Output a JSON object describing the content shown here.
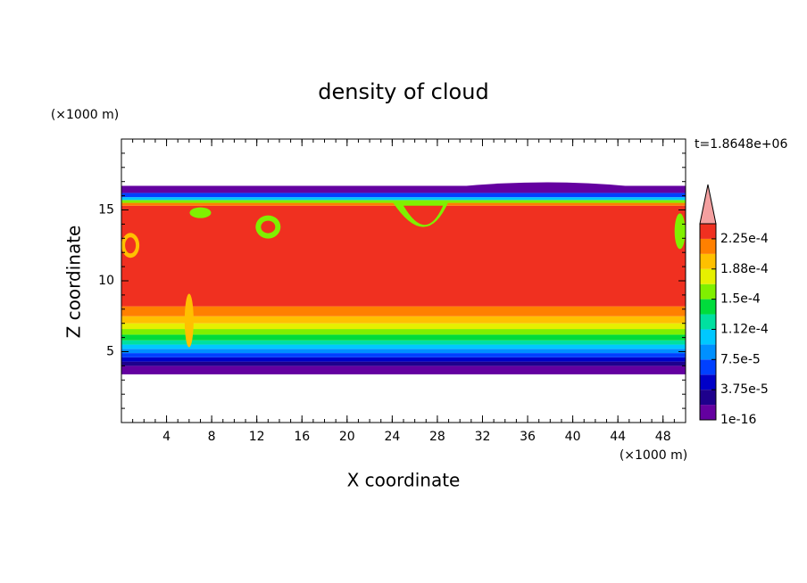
{
  "chart_data": {
    "type": "contour",
    "title": "density of cloud",
    "x_label": "X coordinate",
    "y_label": "Z coordinate",
    "x_unit": "(×1000 m)",
    "y_unit": "(×1000 m)",
    "time_label": "t=1.8648e+06",
    "xlim": [
      0,
      50
    ],
    "xticks": [
      4,
      8,
      12,
      16,
      20,
      24,
      28,
      32,
      36,
      40,
      44,
      48
    ],
    "ylim": [
      0,
      20
    ],
    "yticks": [
      5,
      10,
      15
    ],
    "colorbar": {
      "clim": [
        0,
        0.00024375
      ],
      "ticks": [
        {
          "value": 1e-16,
          "label": "1e-16"
        },
        {
          "value": 3.75e-05,
          "label": "3.75e-5"
        },
        {
          "value": 7.5e-05,
          "label": "7.5e-5"
        },
        {
          "value": 0.0001125,
          "label": "1.12e-4"
        },
        {
          "value": 0.00015,
          "label": "1.5e-4"
        },
        {
          "value": 0.0001875,
          "label": "1.88e-4"
        },
        {
          "value": 0.000225,
          "label": "2.25e-4"
        }
      ],
      "colors": [
        "#6400a0",
        "#1e008c",
        "#0000c8",
        "#0040ff",
        "#0090ff",
        "#00c8ff",
        "#00e0a0",
        "#00dc3c",
        "#80f000",
        "#e6f000",
        "#ffc000",
        "#ff8000",
        "#f03020"
      ],
      "extend_color": "#f4a0a0"
    }
  }
}
